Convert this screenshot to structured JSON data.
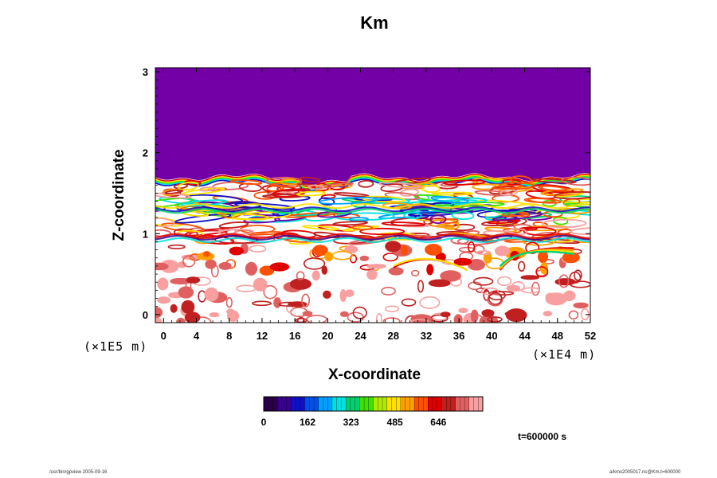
{
  "chart_data": {
    "type": "heatmap",
    "title": "Km",
    "xlabel": "X-coordinate",
    "ylabel": "Z-coordinate",
    "x_scale_label": "(×1E4 m)",
    "y_scale_label": "(×1E5 m)",
    "xlim": [
      -1,
      52
    ],
    "ylim": [
      -0.1,
      3.05
    ],
    "x_ticks": [
      "0",
      "4",
      "8",
      "12",
      "16",
      "20",
      "24",
      "28",
      "32",
      "36",
      "40",
      "44",
      "48",
      "52"
    ],
    "x_tick_values": [
      0,
      4,
      8,
      12,
      16,
      20,
      24,
      28,
      32,
      36,
      40,
      44,
      48,
      52
    ],
    "y_ticks": [
      "0",
      "1",
      "2",
      "3"
    ],
    "y_tick_values": [
      0,
      1,
      2,
      3
    ],
    "colorbar": {
      "ticks": [
        "0",
        "162",
        "323",
        "485",
        "646"
      ],
      "tick_values": [
        0,
        162,
        323,
        485,
        646
      ],
      "max": 810,
      "colors": [
        "#2a004a",
        "#3a0090",
        "#1010c8",
        "#0050e8",
        "#00a0ff",
        "#00e0e0",
        "#00d070",
        "#40e000",
        "#b0e800",
        "#ffe000",
        "#ffa000",
        "#ff5000",
        "#e00000",
        "#c02020",
        "#e06060",
        "#f8a0a0"
      ]
    },
    "fill_color_upper": "#7200a6",
    "field_description": "Km (eddy viscosity) uniform in upper region z≈1.7–3.05; turbulent structures below with high values near z≈0.8–1.7"
  },
  "time_label": "t=600000 s",
  "footer_left": "/usr/bin/gpview 2005-09-16",
  "footer_right": "a/kmx2005017.nc@Km,t=600000"
}
